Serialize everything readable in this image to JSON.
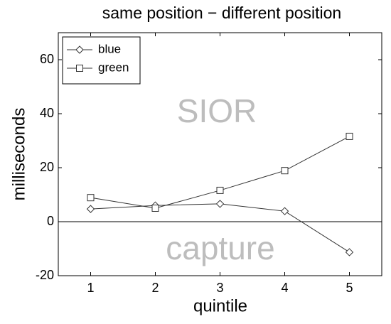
{
  "chart_data": {
    "type": "line",
    "title": "same position − different position",
    "x_label": "quintile",
    "y_label": "milliseconds",
    "x": [
      1,
      2,
      3,
      4,
      5
    ],
    "series": [
      {
        "name": "blue",
        "color": "#333333",
        "marker": "diamond",
        "values": [
          4.7,
          6.0,
          6.6,
          3.9,
          -11.3
        ]
      },
      {
        "name": "green",
        "color": "#333333",
        "marker": "square",
        "values": [
          8.9,
          5.0,
          11.6,
          18.9,
          31.6
        ]
      }
    ],
    "xlim": [
      0.5,
      5.5
    ],
    "xticks": [
      1,
      2,
      3,
      4,
      5
    ],
    "ylim": [
      -20,
      70
    ],
    "yticks": [
      -20,
      0,
      20,
      40,
      60
    ],
    "reference_line": 0,
    "annotations": [
      "SIOR",
      "capture"
    ],
    "legend": "upper left"
  }
}
